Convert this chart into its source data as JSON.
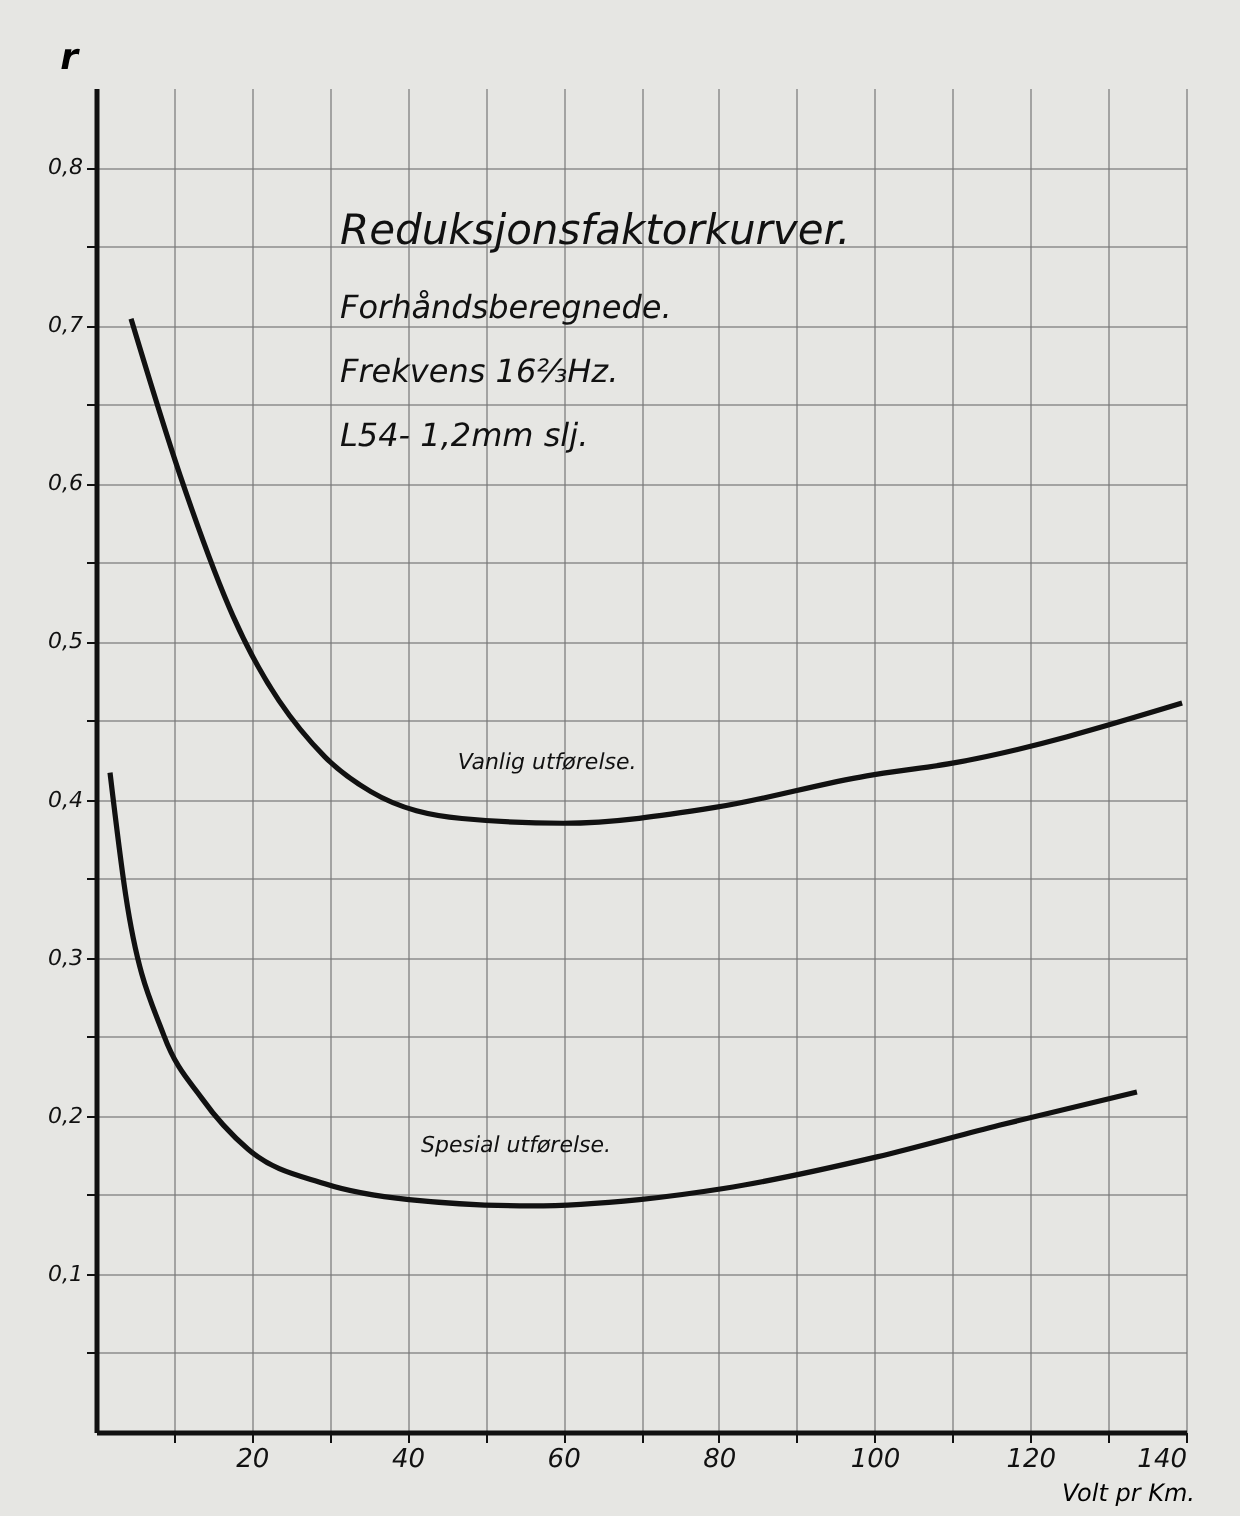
{
  "chart_data": {
    "type": "line",
    "title": "Reduksjonsfaktorkurver.",
    "subtitle": "Forhåndsberegnede.",
    "annotations": [
      "Frekvens 16⅔Hz.",
      "L54- 1,2mm slj."
    ],
    "xlabel": "Volt pr Km.",
    "ylabel": "r",
    "xlim": [
      0,
      140
    ],
    "ylim": [
      0,
      0.85
    ],
    "xticks": [
      {
        "value": 10,
        "label": null
      },
      20,
      {
        "value": 30,
        "label": null
      },
      40,
      {
        "value": 50,
        "label": null
      },
      60,
      {
        "value": 70,
        "label": null
      },
      80,
      {
        "value": 90,
        "label": null
      },
      100,
      {
        "value": 110,
        "label": null
      },
      120,
      {
        "value": 130,
        "label": null
      },
      140
    ],
    "yticks": [
      {
        "value": 0.05,
        "label": null
      },
      {
        "value": 0.1,
        "label": "0,1"
      },
      {
        "value": 0.15,
        "label": null
      },
      {
        "value": 0.2,
        "label": "0,2"
      },
      {
        "value": 0.25,
        "label": null
      },
      {
        "value": 0.3,
        "label": "0,3"
      },
      {
        "value": 0.35,
        "label": null
      },
      {
        "value": 0.4,
        "label": "0,4"
      },
      {
        "value": 0.45,
        "label": null
      },
      {
        "value": 0.5,
        "label": "0,5"
      },
      {
        "value": 0.55,
        "label": null
      },
      {
        "value": 0.6,
        "label": "0,6"
      },
      {
        "value": 0.65,
        "label": null
      },
      {
        "value": 0.7,
        "label": "0,7"
      },
      {
        "value": 0.75,
        "label": null
      },
      {
        "value": 0.8,
        "label": "0,8"
      }
    ],
    "grid": true,
    "line_style": "solid",
    "series": [
      {
        "name": "Vanlig utførelse.",
        "color": "#111111",
        "x": [
          4.5,
          10.8,
          17.6,
          29.4,
          35.3,
          47,
          60,
          79.5,
          99,
          110,
          139.5
        ],
        "values": [
          0.704,
          0.605,
          0.516,
          0.427,
          0.405,
          0.388,
          0.385,
          0.395,
          0.415,
          0.423,
          0.461
        ]
      },
      {
        "name": "Spesial utførelse.",
        "color": "#111111",
        "x": [
          1.8,
          3.8,
          8.7,
          13.6,
          19.5,
          29.4,
          40.2,
          56,
          69.8,
          80.6,
          100.3,
          116,
          133.7
        ],
        "values": [
          0.417,
          0.34,
          0.251,
          0.211,
          0.179,
          0.157,
          0.147,
          0.143,
          0.147,
          0.154,
          0.174,
          0.194,
          0.215
        ]
      }
    ]
  }
}
